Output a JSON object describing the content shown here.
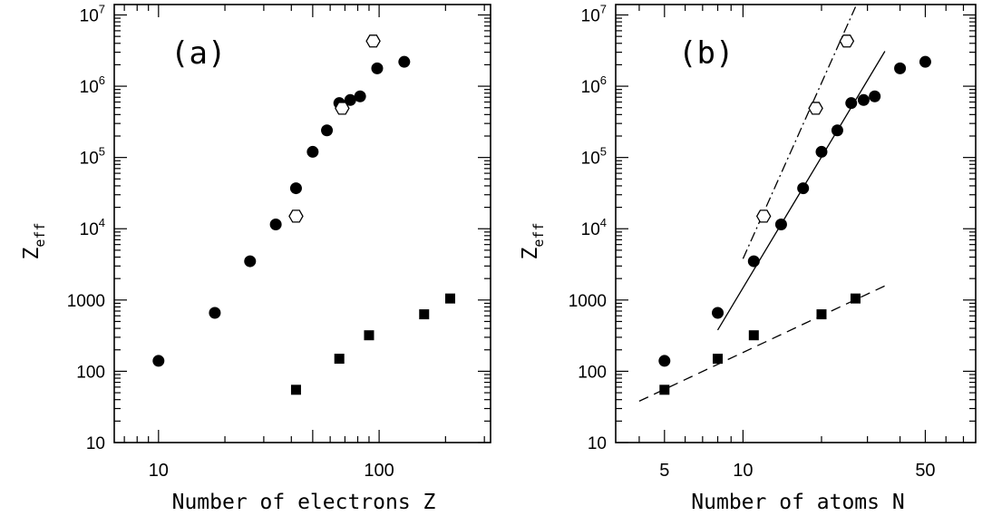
{
  "chart_data": [
    {
      "type": "scatter",
      "panel_label": "(a)",
      "xlabel": "Number of electrons Z",
      "ylabel": "Z",
      "ylabel_sub": "eff",
      "x_scale": "log",
      "y_scale": "log",
      "xlim": [
        6.3,
        320
      ],
      "ylim": [
        10,
        14000000
      ],
      "x_tick_labels": [
        {
          "value": 10,
          "label": "10"
        },
        {
          "value": 100,
          "label": "100"
        }
      ],
      "y_tick_labels": [
        {
          "value": 10,
          "label": "10"
        },
        {
          "value": 100,
          "label": "100"
        },
        {
          "value": 1000,
          "label": "1000"
        },
        {
          "value": 10000,
          "label": "10",
          "exp": "4"
        },
        {
          "value": 100000,
          "label": "10",
          "exp": "5"
        },
        {
          "value": 1000000,
          "label": "10",
          "exp": "6"
        },
        {
          "value": 10000000,
          "label": "10",
          "exp": "7"
        }
      ],
      "grid": false,
      "series": [
        {
          "marker": "filled-circle",
          "points": [
            [
              10,
              140
            ],
            [
              18,
              660
            ],
            [
              26,
              3500
            ],
            [
              34,
              11500
            ],
            [
              42,
              37000
            ],
            [
              50,
              120000
            ],
            [
              58,
              240000
            ],
            [
              66,
              580000
            ],
            [
              74,
              640000
            ],
            [
              82,
              720000
            ],
            [
              98,
              1780000
            ],
            [
              130,
              2200000
            ]
          ]
        },
        {
          "marker": "open-hexagon",
          "points": [
            [
              42,
              15000
            ],
            [
              68,
              490000
            ],
            [
              94,
              4300000
            ]
          ]
        },
        {
          "marker": "filled-square",
          "points": [
            [
              42,
              55
            ],
            [
              66,
              150
            ],
            [
              90,
              320
            ],
            [
              160,
              630
            ],
            [
              210,
              1050
            ]
          ]
        }
      ]
    },
    {
      "type": "scatter",
      "panel_label": "(b)",
      "xlabel": "Number of atoms N",
      "ylabel": "Z",
      "ylabel_sub": "eff",
      "x_scale": "log",
      "y_scale": "log",
      "xlim": [
        3.25,
        78
      ],
      "ylim": [
        10,
        14000000
      ],
      "x_tick_labels": [
        {
          "value": 5,
          "label": "5"
        },
        {
          "value": 10,
          "label": "10"
        },
        {
          "value": 50,
          "label": "50"
        }
      ],
      "y_tick_labels": [
        {
          "value": 10,
          "label": "10"
        },
        {
          "value": 100,
          "label": "100"
        },
        {
          "value": 1000,
          "label": "1000"
        },
        {
          "value": 10000,
          "label": "10",
          "exp": "4"
        },
        {
          "value": 100000,
          "label": "10",
          "exp": "5"
        },
        {
          "value": 1000000,
          "label": "10",
          "exp": "6"
        },
        {
          "value": 10000000,
          "label": "10",
          "exp": "7"
        }
      ],
      "grid": false,
      "series": [
        {
          "marker": "filled-circle",
          "points": [
            [
              5,
              140
            ],
            [
              8,
              660
            ],
            [
              11,
              3500
            ],
            [
              14,
              11500
            ],
            [
              17,
              37000
            ],
            [
              20,
              120000
            ],
            [
              23,
              240000
            ],
            [
              26,
              580000
            ],
            [
              29,
              640000
            ],
            [
              32,
              720000
            ],
            [
              40,
              1780000
            ],
            [
              50,
              2200000
            ]
          ]
        },
        {
          "marker": "open-hexagon",
          "points": [
            [
              12,
              15000
            ],
            [
              19,
              490000
            ],
            [
              25,
              4300000
            ]
          ]
        },
        {
          "marker": "filled-square",
          "points": [
            [
              5,
              55
            ],
            [
              8,
              150
            ],
            [
              11,
              320
            ],
            [
              20,
              630
            ],
            [
              27,
              1050
            ]
          ]
        }
      ],
      "fit_lines": [
        {
          "style": "solid",
          "points": [
            [
              8,
              380
            ],
            [
              35,
              3100000
            ]
          ]
        },
        {
          "style": "dash-dot",
          "points": [
            [
              10,
              3800
            ],
            [
              27,
              13000000
            ]
          ]
        },
        {
          "style": "dashed",
          "points": [
            [
              4,
              38
            ],
            [
              35,
              1580
            ]
          ]
        }
      ]
    }
  ]
}
